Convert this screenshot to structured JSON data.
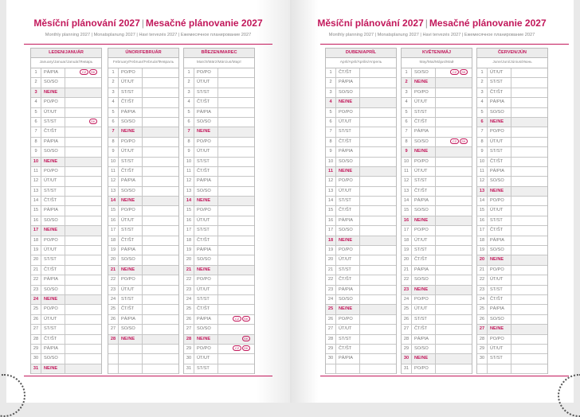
{
  "pages": [
    {
      "title_cz": "Měsíční plánování 2027",
      "title_sk": "Mesačné plánovanie 2027",
      "subtitle": "Monthly planning 2027 | Monatsplanung 2027 | Havi tervezés 2027 | Ежемесячное планирование 2027",
      "months": [
        {
          "name": "LEDEN/JANUÁR",
          "sub": "January/Januar/Január/Январь",
          "first_weekday": 4,
          "days": 31,
          "holidays": {
            "1": [
              "CZ",
              "SK"
            ],
            "6": [
              "SK"
            ]
          }
        },
        {
          "name": "ÚNOR/FEBRUÁR",
          "sub": "February/Februar/Február/Февраль",
          "first_weekday": 0,
          "days": 28,
          "holidays": {}
        },
        {
          "name": "BŘEZEN/MAREC",
          "sub": "March/März/Március/Март",
          "first_weekday": 0,
          "days": 31,
          "holidays": {
            "26": [
              "CZ",
              "SK"
            ],
            "28": [
              "SK"
            ],
            "29": [
              "CZ",
              "SK"
            ]
          }
        }
      ]
    },
    {
      "title_cz": "Měsíční plánování 2027",
      "title_sk": "Mesačné plánovanie 2027",
      "subtitle": "Monthly planning 2027 | Monatsplanung 2027 | Havi tervezés 2027 | Ежемесячное планирование 2027",
      "months": [
        {
          "name": "DUBEN/APRÍL",
          "sub": "April/April/Április/Апрель",
          "first_weekday": 3,
          "days": 30,
          "holidays": {}
        },
        {
          "name": "KVĚTEN/MÁJ",
          "sub": "May/Mai/Május/Май",
          "first_weekday": 5,
          "days": 31,
          "holidays": {
            "1": [
              "CZ",
              "SK"
            ],
            "8": [
              "CZ",
              "SK"
            ]
          }
        },
        {
          "name": "ČERVEN/JÚN",
          "sub": "June/Juni/Június/Июнь",
          "first_weekday": 1,
          "days": 30,
          "holidays": {}
        }
      ]
    }
  ],
  "weekday_labels": [
    "PO/PO",
    "ÚT/UT",
    "ST/ST",
    "ČT/ŠT",
    "PÁ/PIA",
    "SO/SO",
    "NE/NE"
  ],
  "colors": {
    "accent": "#c2185b",
    "sunday_bg": "#efefef"
  }
}
